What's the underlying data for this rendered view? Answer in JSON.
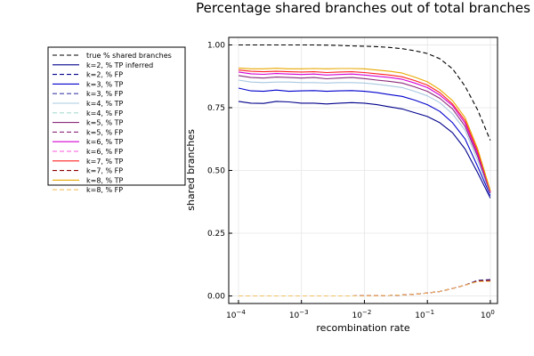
{
  "chart_data": {
    "type": "line",
    "title": "Percentage shared branches out of total branches",
    "xlabel": "recombination rate",
    "ylabel": "shared branches",
    "xscale": "log10",
    "xlim": [
      7e-05,
      1.3
    ],
    "ylim": [
      -0.03,
      1.03
    ],
    "grid": true,
    "legend_position": "top-left, outside plot area",
    "x_ticks": [
      {
        "value": 0.0001,
        "base": "10",
        "exp": "−4"
      },
      {
        "value": 0.001,
        "base": "10",
        "exp": "−3"
      },
      {
        "value": 0.01,
        "base": "10",
        "exp": "−2"
      },
      {
        "value": 0.1,
        "base": "10",
        "exp": "−1"
      },
      {
        "value": 1,
        "base": "10",
        "exp": "0"
      }
    ],
    "y_ticks": [
      {
        "value": 0,
        "label": "0.00"
      },
      {
        "value": 0.25,
        "label": "0.25"
      },
      {
        "value": 0.5,
        "label": "0.50"
      },
      {
        "value": 0.75,
        "label": "0.75"
      },
      {
        "value": 1,
        "label": "1.00"
      }
    ],
    "x": [
      0.0001,
      0.000158,
      0.000251,
      0.000398,
      0.000631,
      0.001,
      0.00158,
      0.00251,
      0.00398,
      0.00631,
      0.01,
      0.0158,
      0.0251,
      0.0398,
      0.0631,
      0.1,
      0.158,
      0.251,
      0.398,
      0.631,
      1
    ],
    "series": [
      {
        "name": "true % shared branches",
        "color": "#000000",
        "dash": true,
        "values": [
          1.0,
          1.0,
          1.0,
          1.0,
          1.0,
          1.0,
          1.0,
          0.999,
          0.998,
          0.996,
          0.995,
          0.993,
          0.99,
          0.985,
          0.977,
          0.966,
          0.945,
          0.905,
          0.835,
          0.74,
          0.62
        ]
      },
      {
        "name": "k=2, % TP inferred",
        "color": "#00008b",
        "dash": false,
        "values": [
          0.775,
          0.768,
          0.767,
          0.775,
          0.773,
          0.768,
          0.768,
          0.765,
          0.768,
          0.77,
          0.768,
          0.762,
          0.753,
          0.745,
          0.73,
          0.715,
          0.69,
          0.65,
          0.585,
          0.49,
          0.39
        ]
      },
      {
        "name": "k=2, % FP",
        "color": "#00008b",
        "dash": true,
        "values": [
          0.0,
          0.0,
          0.0,
          0.0,
          0.0,
          0.0,
          0.0,
          0.0,
          0.0,
          0.0,
          0.001,
          0.001,
          0.002,
          0.004,
          0.007,
          0.012,
          0.018,
          0.03,
          0.043,
          0.063,
          0.065
        ]
      },
      {
        "name": "k=3, % TP",
        "color": "#0000cd",
        "dash": false,
        "values": [
          0.828,
          0.817,
          0.815,
          0.82,
          0.815,
          0.817,
          0.818,
          0.815,
          0.817,
          0.818,
          0.815,
          0.81,
          0.802,
          0.795,
          0.78,
          0.762,
          0.735,
          0.69,
          0.625,
          0.515,
          0.4
        ]
      },
      {
        "name": "k=3, % FP",
        "color": "#4040a8",
        "dash": true,
        "values": [
          0.0,
          0.0,
          0.0,
          0.0,
          0.0,
          0.0,
          0.0,
          0.0,
          0.0,
          0.0,
          0.001,
          0.001,
          0.002,
          0.004,
          0.007,
          0.012,
          0.018,
          0.03,
          0.043,
          0.062,
          0.063
        ]
      },
      {
        "name": "k=4, % TP",
        "color": "#a8c8e0",
        "dash": false,
        "values": [
          0.86,
          0.852,
          0.85,
          0.852,
          0.852,
          0.85,
          0.85,
          0.848,
          0.85,
          0.85,
          0.848,
          0.843,
          0.837,
          0.83,
          0.815,
          0.797,
          0.77,
          0.725,
          0.66,
          0.54,
          0.405
        ]
      },
      {
        "name": "k=4, % FP",
        "color": "#a8dcd0",
        "dash": true,
        "values": [
          0.0,
          0.0,
          0.0,
          0.0,
          0.0,
          0.0,
          0.0,
          0.0,
          0.0,
          0.0,
          0.001,
          0.001,
          0.002,
          0.004,
          0.007,
          0.012,
          0.018,
          0.03,
          0.043,
          0.061,
          0.062
        ]
      },
      {
        "name": "k=5, % TP",
        "color": "#8b2a7a",
        "dash": false,
        "values": [
          0.878,
          0.87,
          0.868,
          0.872,
          0.87,
          0.868,
          0.87,
          0.865,
          0.868,
          0.87,
          0.866,
          0.86,
          0.855,
          0.848,
          0.833,
          0.815,
          0.787,
          0.745,
          0.675,
          0.555,
          0.41
        ]
      },
      {
        "name": "k=5, % FP",
        "color": "#8b2a7a",
        "dash": true,
        "values": [
          0.0,
          0.0,
          0.0,
          0.0,
          0.0,
          0.0,
          0.0,
          0.0,
          0.0,
          0.0,
          0.001,
          0.001,
          0.002,
          0.004,
          0.007,
          0.012,
          0.018,
          0.03,
          0.043,
          0.06,
          0.061
        ]
      },
      {
        "name": "k=6, % TP",
        "color": "#d400d4",
        "dash": false,
        "values": [
          0.892,
          0.885,
          0.883,
          0.886,
          0.884,
          0.882,
          0.884,
          0.88,
          0.882,
          0.884,
          0.88,
          0.875,
          0.87,
          0.863,
          0.848,
          0.83,
          0.8,
          0.758,
          0.688,
          0.565,
          0.415
        ]
      },
      {
        "name": "k=6, % FP",
        "color": "#ff55dd",
        "dash": true,
        "values": [
          0.0,
          0.0,
          0.0,
          0.0,
          0.0,
          0.0,
          0.0,
          0.0,
          0.0,
          0.0,
          0.001,
          0.001,
          0.002,
          0.004,
          0.007,
          0.012,
          0.018,
          0.03,
          0.043,
          0.058,
          0.06
        ]
      },
      {
        "name": "k=7, % TP",
        "color": "#ff2020",
        "dash": false,
        "values": [
          0.9,
          0.895,
          0.893,
          0.895,
          0.893,
          0.892,
          0.893,
          0.89,
          0.892,
          0.893,
          0.89,
          0.885,
          0.88,
          0.873,
          0.858,
          0.84,
          0.81,
          0.765,
          0.698,
          0.575,
          0.418
        ]
      },
      {
        "name": "k=7, % FP",
        "color": "#8b0000",
        "dash": true,
        "values": [
          0.0,
          0.0,
          0.0,
          0.0,
          0.0,
          0.0,
          0.0,
          0.0,
          0.0,
          0.0,
          0.001,
          0.001,
          0.002,
          0.004,
          0.007,
          0.012,
          0.018,
          0.03,
          0.043,
          0.06,
          0.062
        ]
      },
      {
        "name": "k=8, % TP",
        "color": "#e8a800",
        "dash": false,
        "values": [
          0.908,
          0.905,
          0.905,
          0.907,
          0.905,
          0.905,
          0.906,
          0.905,
          0.906,
          0.906,
          0.905,
          0.9,
          0.895,
          0.888,
          0.872,
          0.853,
          0.822,
          0.778,
          0.71,
          0.585,
          0.42
        ]
      },
      {
        "name": "k=8, % FP",
        "color": "#f0c060",
        "dash": true,
        "values": [
          0.0,
          0.0,
          0.0,
          0.0,
          0.0,
          0.0,
          0.0,
          0.0,
          0.0,
          0.0,
          0.001,
          0.001,
          0.002,
          0.004,
          0.007,
          0.012,
          0.018,
          0.03,
          0.043,
          0.057,
          0.058
        ]
      }
    ]
  }
}
